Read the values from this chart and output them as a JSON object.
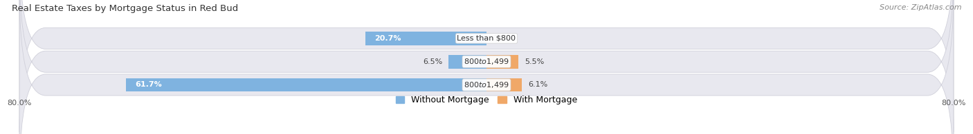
{
  "title": "Real Estate Taxes by Mortgage Status in Red Bud",
  "source": "Source: ZipAtlas.com",
  "rows": [
    {
      "label": "Less than $800",
      "without_pct": 20.7,
      "with_pct": 0.0
    },
    {
      "label": "$800 to $1,499",
      "without_pct": 6.5,
      "with_pct": 5.5
    },
    {
      "label": "$800 to $1,499",
      "without_pct": 61.7,
      "with_pct": 6.1
    }
  ],
  "x_min": -80.0,
  "x_max": 80.0,
  "x_tick_labels": [
    "80.0%",
    "80.0%"
  ],
  "color_without": "#7fb3e0",
  "color_with": "#f0a868",
  "bar_height": 0.58,
  "row_bg_color": "#e8e8ef",
  "row_bg_edge": "#d0d0da",
  "bar_label_fontsize": 8.0,
  "title_fontsize": 9.5,
  "legend_fontsize": 9,
  "source_fontsize": 8
}
